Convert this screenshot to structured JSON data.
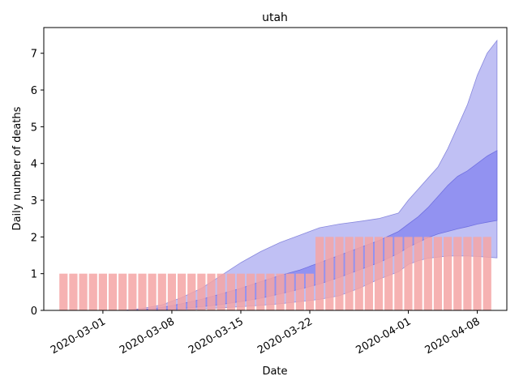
{
  "chart_data": {
    "type": "bar",
    "title": "utah",
    "xlabel": "Date",
    "ylabel": "Daily number of deaths",
    "x_start": "2020-02-26",
    "xlim": [
      "2020-02-24",
      "2020-04-11"
    ],
    "ylim": [
      0,
      7.7
    ],
    "x_ticks": [
      "2020-03-01",
      "2020-03-08",
      "2020-03-15",
      "2020-03-22",
      "2020-04-01",
      "2020-04-08"
    ],
    "y_ticks": [
      0,
      1,
      2,
      3,
      4,
      5,
      6,
      7
    ],
    "grid": false,
    "legend": "none",
    "colors": {
      "bars": "#f4a5a5",
      "band_outer": "#9999ee",
      "band_inner": "#7f7ff0"
    },
    "series": [
      {
        "role": "observed-bars",
        "start": "2020-02-26",
        "values": [
          1,
          1,
          1,
          1,
          1,
          1,
          1,
          1,
          1,
          1,
          1,
          1,
          1,
          1,
          1,
          1,
          1,
          1,
          1,
          1,
          1,
          1,
          1,
          1,
          1,
          1,
          2,
          2,
          2,
          2,
          2,
          2,
          2,
          2,
          2,
          2,
          2,
          2,
          2,
          2,
          2,
          2,
          2,
          2
        ]
      },
      {
        "role": "band-outer",
        "dates": [
          "2020-03-03",
          "2020-03-05",
          "2020-03-07",
          "2020-03-09",
          "2020-03-11",
          "2020-03-13",
          "2020-03-15",
          "2020-03-17",
          "2020-03-19",
          "2020-03-21",
          "2020-03-23",
          "2020-03-25",
          "2020-03-27",
          "2020-03-29",
          "2020-03-31",
          "2020-04-01",
          "2020-04-02",
          "2020-04-03",
          "2020-04-04",
          "2020-04-05",
          "2020-04-06",
          "2020-04-07",
          "2020-04-08",
          "2020-04-09",
          "2020-04-10"
        ],
        "upper": [
          0.0,
          0.05,
          0.15,
          0.35,
          0.6,
          0.95,
          1.3,
          1.6,
          1.85,
          2.05,
          2.25,
          2.35,
          2.42,
          2.5,
          2.65,
          3.0,
          3.3,
          3.6,
          3.9,
          4.4,
          5.0,
          5.6,
          6.4,
          7.0,
          7.35
        ],
        "lower": [
          0.0,
          0.0,
          0.01,
          0.02,
          0.04,
          0.07,
          0.1,
          0.14,
          0.18,
          0.24,
          0.3,
          0.4,
          0.6,
          0.85,
          1.05,
          1.25,
          1.35,
          1.42,
          1.45,
          1.48,
          1.48,
          1.48,
          1.47,
          1.45,
          1.43
        ]
      },
      {
        "role": "band-inner",
        "dates": [
          "2020-03-03",
          "2020-03-05",
          "2020-03-07",
          "2020-03-09",
          "2020-03-11",
          "2020-03-13",
          "2020-03-15",
          "2020-03-17",
          "2020-03-19",
          "2020-03-21",
          "2020-03-23",
          "2020-03-25",
          "2020-03-27",
          "2020-03-29",
          "2020-03-31",
          "2020-04-01",
          "2020-04-02",
          "2020-04-03",
          "2020-04-04",
          "2020-04-05",
          "2020-04-06",
          "2020-04-07",
          "2020-04-08",
          "2020-04-09",
          "2020-04-10"
        ],
        "upper": [
          0.0,
          0.02,
          0.08,
          0.18,
          0.3,
          0.45,
          0.6,
          0.78,
          0.95,
          1.1,
          1.3,
          1.5,
          1.7,
          1.9,
          2.15,
          2.35,
          2.55,
          2.8,
          3.1,
          3.4,
          3.65,
          3.8,
          4.0,
          4.2,
          4.35
        ],
        "lower": [
          0.0,
          0.0,
          0.02,
          0.05,
          0.1,
          0.16,
          0.24,
          0.33,
          0.45,
          0.58,
          0.72,
          0.9,
          1.1,
          1.3,
          1.55,
          1.72,
          1.85,
          1.98,
          2.08,
          2.15,
          2.22,
          2.28,
          2.35,
          2.4,
          2.45
        ]
      }
    ]
  }
}
